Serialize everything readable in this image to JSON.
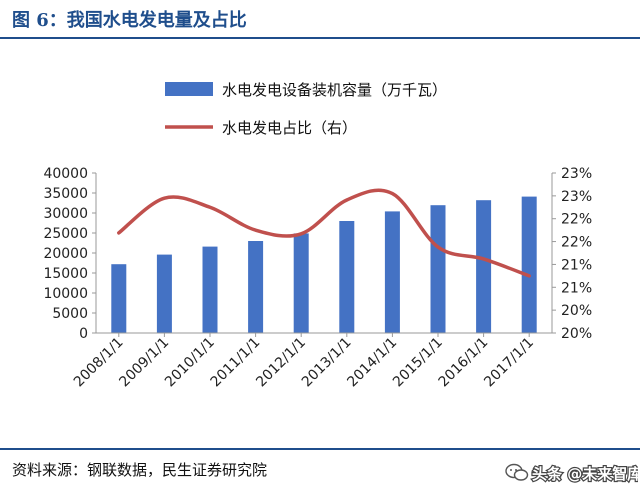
{
  "header": {
    "title": "图 6：我国水电发电量及占比"
  },
  "footer": {
    "source": "资料来源：钢联数据，民生证券研究院"
  },
  "watermark": {
    "text": "头条 @未来智库"
  },
  "colors": {
    "accent": "#1f4e8c",
    "bar": "#4472c4",
    "line": "#c0504d"
  },
  "chart_data": {
    "type": "bar",
    "categories": [
      "2008/1/1",
      "2009/1/1",
      "2010/1/1",
      "2011/1/1",
      "2012/1/1",
      "2013/1/1",
      "2014/1/1",
      "2015/1/1",
      "2016/1/1",
      "2017/1/1"
    ],
    "series": [
      {
        "name": "水电发电设备装机容量（万千瓦）",
        "type": "bar",
        "axis": "left",
        "color": "#4472c4",
        "values": [
          17200,
          19600,
          21600,
          23000,
          24900,
          28000,
          30400,
          31950,
          33200,
          34100
        ]
      },
      {
        "name": "水电发电占比（右）",
        "type": "line",
        "axis": "right",
        "color": "#c0504d",
        "values": [
          0.2219,
          0.2295,
          0.2275,
          0.2225,
          0.2217,
          0.2291,
          0.2305,
          0.2188,
          0.2162,
          0.2125
        ]
      }
    ],
    "y_left": {
      "ylim": [
        0,
        40000
      ],
      "ticks": [
        0,
        5000,
        10000,
        15000,
        20000,
        25000,
        30000,
        35000,
        40000
      ],
      "tick_labels": [
        "0",
        "5000",
        "10000",
        "15000",
        "20000",
        "25000",
        "30000",
        "35000",
        "40000"
      ]
    },
    "y_right": {
      "ylim": [
        0.2,
        0.235
      ],
      "ticks": [
        0.2,
        0.205,
        0.21,
        0.215,
        0.22,
        0.225,
        0.23,
        0.235
      ],
      "tick_labels": [
        "20%",
        "20%",
        "21%",
        "21%",
        "22%",
        "22%",
        "23%",
        "23%"
      ]
    },
    "grid": false,
    "legend_position": "top"
  }
}
